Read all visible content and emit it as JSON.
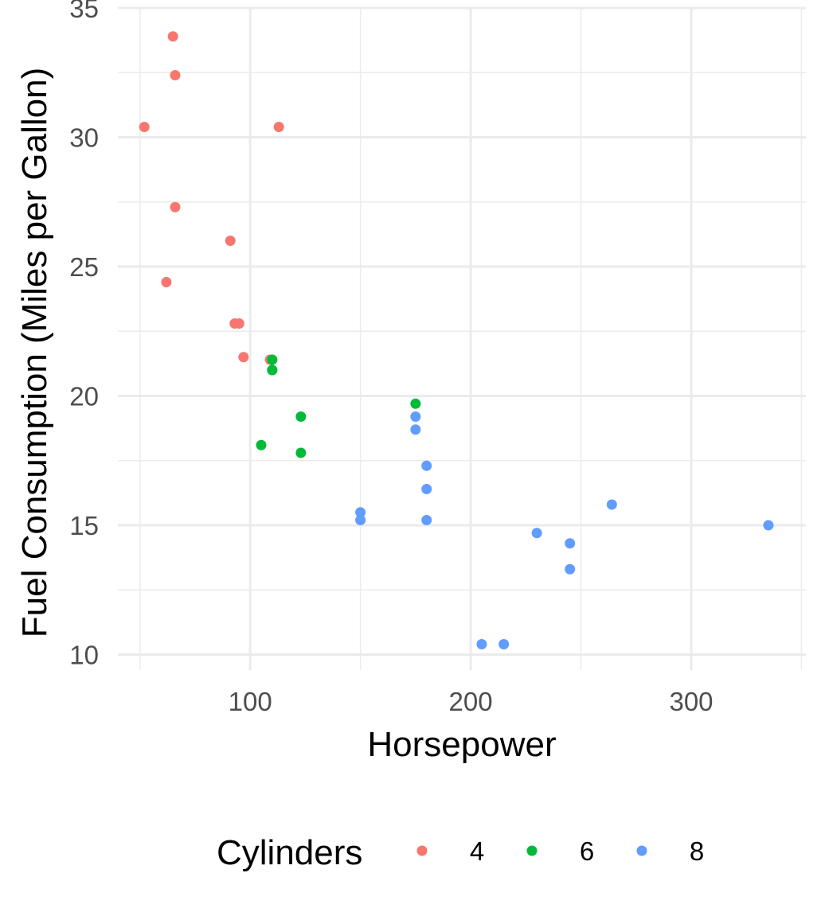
{
  "chart_data": {
    "type": "scatter",
    "title": "",
    "xlabel": "Horsepower",
    "ylabel": "Fuel Consumption (Miles per Gallon)",
    "xlim": [
      40,
      352
    ],
    "ylim": [
      9.4,
      35
    ],
    "x_ticks": [
      100,
      200,
      300
    ],
    "y_ticks": [
      10,
      15,
      20,
      25,
      30,
      35
    ],
    "grid": true,
    "legend_position": "bottom",
    "legend_title": "Cylinders",
    "series": [
      {
        "name": "4",
        "color": "#F8766D",
        "points": [
          [
            65,
            33.9
          ],
          [
            66,
            32.4
          ],
          [
            52,
            30.4
          ],
          [
            113,
            30.4
          ],
          [
            66,
            27.3
          ],
          [
            91,
            26.0
          ],
          [
            62,
            24.4
          ],
          [
            93,
            22.8
          ],
          [
            95,
            22.8
          ],
          [
            97,
            21.5
          ],
          [
            109,
            21.4
          ]
        ]
      },
      {
        "name": "6",
        "color": "#00BA38",
        "points": [
          [
            110,
            21.4
          ],
          [
            110,
            21.0
          ],
          [
            110,
            21.0
          ],
          [
            175,
            19.7
          ],
          [
            123,
            19.2
          ],
          [
            105,
            18.1
          ],
          [
            123,
            17.8
          ]
        ]
      },
      {
        "name": "8",
        "color": "#619CFF",
        "points": [
          [
            175,
            19.2
          ],
          [
            175,
            18.7
          ],
          [
            180,
            17.3
          ],
          [
            180,
            16.4
          ],
          [
            264,
            15.8
          ],
          [
            150,
            15.5
          ],
          [
            150,
            15.2
          ],
          [
            180,
            15.2
          ],
          [
            335,
            15.0
          ],
          [
            230,
            14.7
          ],
          [
            245,
            14.3
          ],
          [
            245,
            13.3
          ],
          [
            205,
            10.4
          ],
          [
            215,
            10.4
          ]
        ]
      }
    ]
  }
}
